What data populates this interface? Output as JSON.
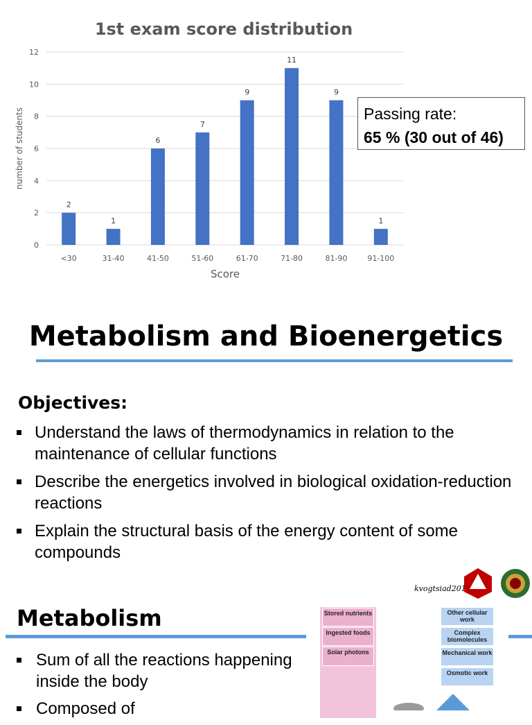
{
  "chart_data": {
    "type": "bar",
    "title": "1st exam score distribution",
    "xlabel": "Score",
    "ylabel": "number of students",
    "categories": [
      "<30",
      "31-40",
      "41-50",
      "51-60",
      "61-70",
      "71-80",
      "81-90",
      "91-100"
    ],
    "values": [
      2,
      1,
      6,
      7,
      9,
      11,
      9,
      1
    ],
    "yticks": [
      "0",
      "2",
      "4",
      "6",
      "8",
      "10",
      "12"
    ],
    "ylim": [
      0,
      12
    ],
    "grid": true,
    "bar_color": "#4472c4",
    "grid_color": "#d9d9d9"
  },
  "passing": {
    "label": "Passing rate:",
    "value": "65 % (30 out of 46)"
  },
  "slide2": {
    "title": "Metabolism and Bioenergetics",
    "objectives_heading": "Objectives:",
    "objectives": [
      "Understand the laws of thermodynamics in relation to the maintenance of cellular functions",
      "Describe the energetics involved in biological oxidation-reduction reactions",
      "Explain the structural basis of the energy content of some compounds"
    ],
    "accent_color": "#5b9bd5"
  },
  "slide3": {
    "signature": "kvogtsiad2019",
    "title": "Metabolism",
    "bullets": [
      "Sum of all the reactions happening inside the body",
      "Composed of"
    ],
    "left_column": [
      "Stored nutrients",
      "Ingested foods",
      "Solar photons"
    ],
    "right_column": [
      "Other cellular work",
      "Complex biomolecules",
      "Mechanical work",
      "Osmotic work"
    ]
  }
}
